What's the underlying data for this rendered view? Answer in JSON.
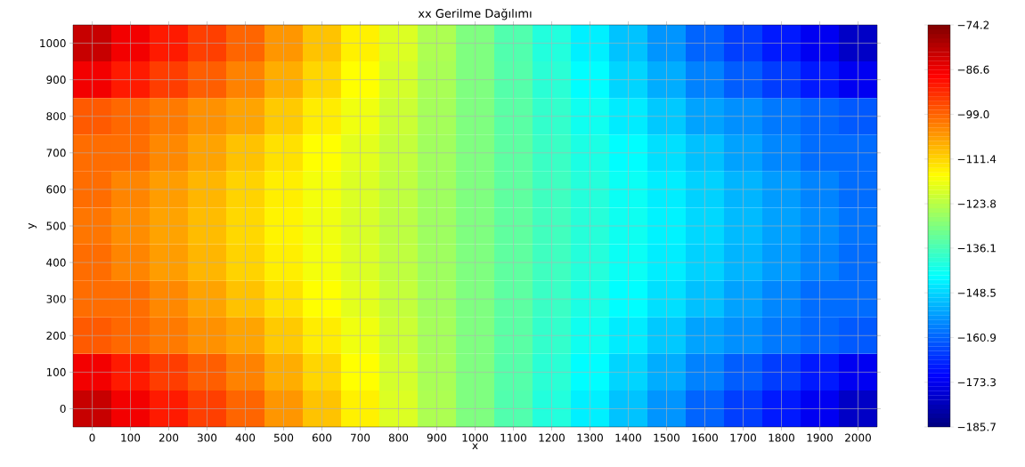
{
  "chart_data": {
    "type": "heatmap",
    "title": "xx Gerilme Dağılımı",
    "xlabel": "x",
    "ylabel": "y",
    "grid": true,
    "categories": [
      "0",
      "100",
      "200",
      "300",
      "400",
      "500",
      "600",
      "700",
      "800",
      "900",
      "1000",
      "1100",
      "1200",
      "1300",
      "1400",
      "1500",
      "1600",
      "1700",
      "1800",
      "1900",
      "2000"
    ],
    "y_categories": [
      "1000",
      "900",
      "800",
      "700",
      "600",
      "500",
      "400",
      "300",
      "200",
      "100",
      "0"
    ],
    "cells": [
      [
        -82,
        -86.8,
        -91,
        -95,
        -99.2,
        -104.5,
        -109.5,
        -114.5,
        -119.8,
        -125,
        -130,
        -135,
        -140.2,
        -145.5,
        -150.5,
        -155.5,
        -160.8,
        -165,
        -169,
        -173.2,
        -178
      ],
      [
        -86.8,
        -91.0,
        -94.8,
        -98.4,
        -102.4,
        -107.1,
        -111.5,
        -116.0,
        -120.7,
        -125.4,
        -130,
        -134.6,
        -139.3,
        -144.0,
        -148.5,
        -152.9,
        -157.6,
        -161.6,
        -165.2,
        -169.0,
        -173.2
      ],
      [
        -98.0,
        -99.5,
        -101.5,
        -104.0,
        -106.1,
        -110.2,
        -114.0,
        -117.7,
        -121.7,
        -125.9,
        -130,
        -134.1,
        -138.3,
        -142.3,
        -146.0,
        -149.8,
        -153.9,
        -156.0,
        -158.5,
        -160.5,
        -162.0
      ],
      [
        -100.0,
        -100.2,
        -103.0,
        -106.0,
        -109.3,
        -112.7,
        -116.0,
        -119.1,
        -122.5,
        -126.3,
        -130,
        -133.7,
        -137.5,
        -140.9,
        -144.0,
        -147.3,
        -150.7,
        -154.0,
        -157.0,
        -159.8,
        -160.0
      ],
      [
        -100.1,
        -102.7,
        -105.3,
        -108.0,
        -111.2,
        -114.3,
        -117.2,
        -120.0,
        -123.0,
        -126.5,
        -130,
        -133.5,
        -137.0,
        -140.0,
        -142.8,
        -145.7,
        -148.8,
        -152.0,
        -154.7,
        -157.3,
        -159.9
      ],
      [
        -101,
        -103.5,
        -106,
        -108.7,
        -111.8,
        -114.8,
        -117.6,
        -120.3,
        -123.2,
        -126.6,
        -130,
        -133.4,
        -136.8,
        -139.7,
        -142.4,
        -145.2,
        -148.2,
        -151.3,
        -154,
        -156.5,
        -159
      ],
      [
        -100.1,
        -102.7,
        -105.3,
        -108.0,
        -111.2,
        -114.3,
        -117.2,
        -120.0,
        -123.0,
        -126.5,
        -130,
        -133.5,
        -137.0,
        -140.0,
        -142.8,
        -145.7,
        -148.8,
        -152.0,
        -154.7,
        -157.3,
        -159.9
      ],
      [
        -100.0,
        -100.2,
        -103.0,
        -106.0,
        -109.3,
        -112.7,
        -116.0,
        -119.1,
        -122.5,
        -126.3,
        -130,
        -133.7,
        -137.5,
        -140.9,
        -144.0,
        -147.3,
        -150.7,
        -154.0,
        -157.0,
        -159.8,
        -160.0
      ],
      [
        -98.0,
        -99.5,
        -101.5,
        -104.0,
        -106.1,
        -110.2,
        -114.0,
        -117.7,
        -121.7,
        -125.9,
        -130,
        -134.1,
        -138.3,
        -142.3,
        -146.0,
        -149.8,
        -153.9,
        -156.0,
        -158.5,
        -160.5,
        -162.0
      ],
      [
        -86.8,
        -91.0,
        -94.8,
        -98.4,
        -102.4,
        -107.1,
        -111.5,
        -116.0,
        -120.7,
        -125.4,
        -130,
        -134.6,
        -139.3,
        -144.0,
        -148.5,
        -152.9,
        -157.6,
        -161.6,
        -165.2,
        -169.0,
        -173.2
      ],
      [
        -82,
        -86.8,
        -91,
        -95,
        -99.2,
        -104.5,
        -109.5,
        -114.5,
        -119.8,
        -125,
        -130,
        -135,
        -140.2,
        -145.5,
        -150.5,
        -155.5,
        -160.8,
        -165,
        -169,
        -173.2,
        -178
      ]
    ],
    "clim": [
      -185.7,
      -74.2
    ],
    "cticks": [
      {
        "value": -185.7,
        "label": "−185.7"
      },
      {
        "value": -173.3,
        "label": "−173.3"
      },
      {
        "value": -160.9,
        "label": "−160.9"
      },
      {
        "value": -148.5,
        "label": "−148.5"
      },
      {
        "value": -136.1,
        "label": "−136.1"
      },
      {
        "value": -123.8,
        "label": "−123.8"
      },
      {
        "value": -111.4,
        "label": "−111.4"
      },
      {
        "value": -99.0,
        "label": "−99.0"
      },
      {
        "value": -86.6,
        "label": "−86.6"
      },
      {
        "value": -74.2,
        "label": "−74.2"
      }
    ]
  }
}
